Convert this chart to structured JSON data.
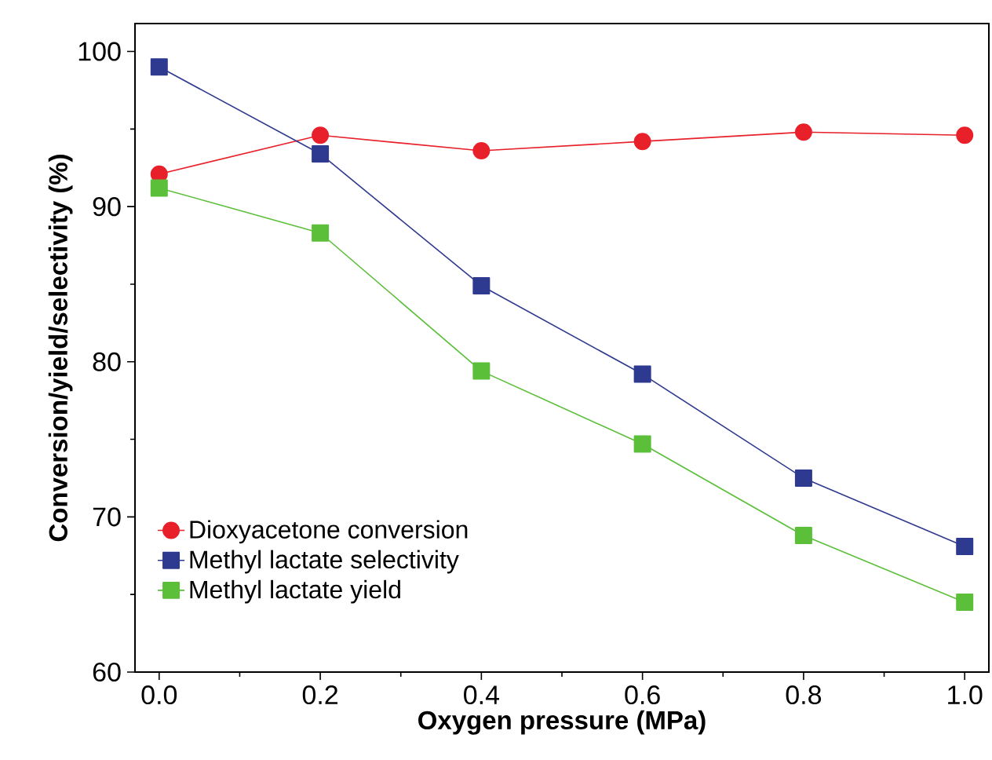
{
  "chart_data": {
    "type": "line",
    "xlabel": "Oxygen pressure (MPa)",
    "ylabel": "Conversion/yield/selectivity (%)",
    "x": [
      0.0,
      0.2,
      0.4,
      0.6,
      0.8,
      1.0
    ],
    "series": [
      {
        "name": "Dioxyacetone conversion",
        "color": "#e8202a",
        "marker": "circle",
        "values": [
          92.1,
          94.6,
          93.6,
          94.2,
          94.8,
          94.6
        ]
      },
      {
        "name": "Methyl lactate selectivity",
        "color": "#2e3a8f",
        "marker": "square",
        "values": [
          99.0,
          93.4,
          84.9,
          79.2,
          72.5,
          68.1
        ]
      },
      {
        "name": "Methyl lactate yield",
        "color": "#5bbf3a",
        "marker": "square",
        "values": [
          91.2,
          88.3,
          79.4,
          74.7,
          68.8,
          64.5
        ]
      }
    ],
    "xlim": [
      -0.03,
      1.03
    ],
    "ylim": [
      60,
      101.8
    ],
    "xticks": [
      {
        "value": 0.0,
        "label": "0.0"
      },
      0.2,
      0.4,
      0.6,
      0.8,
      {
        "value": 1.0,
        "label": "1.0"
      }
    ],
    "yticks": [
      60,
      70,
      80,
      90,
      100
    ],
    "legend": "bottom left",
    "grid": false,
    "line_style": "solid"
  }
}
